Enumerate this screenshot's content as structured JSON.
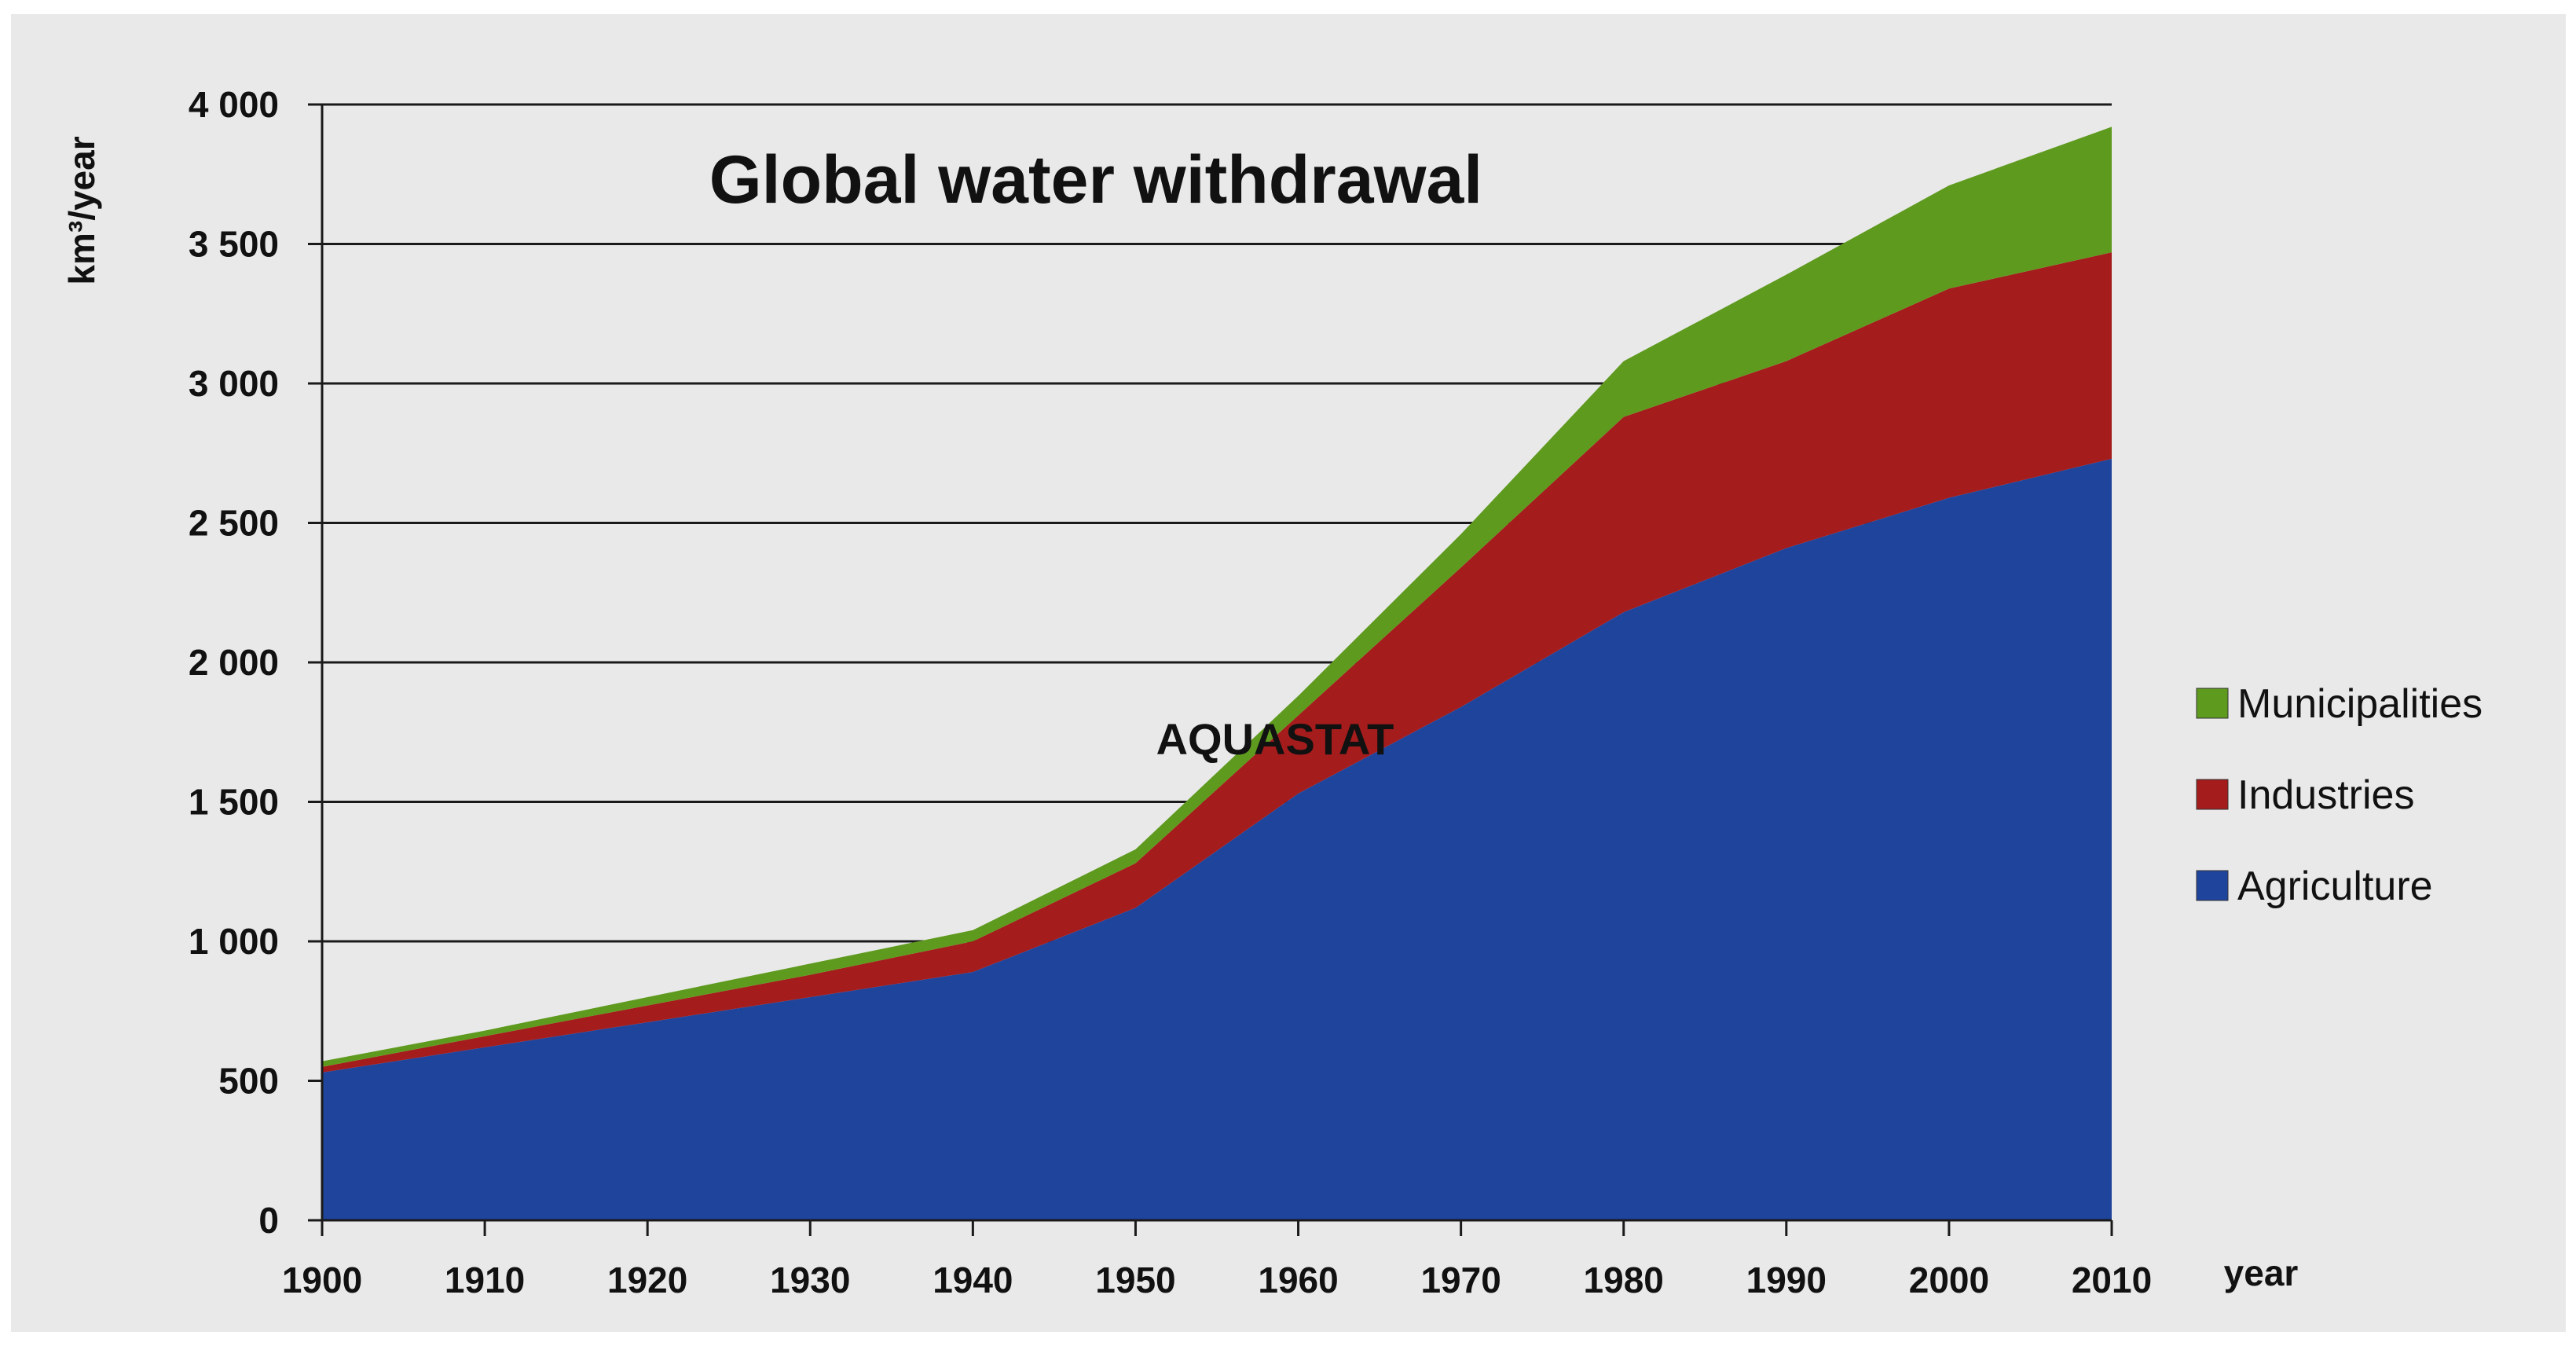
{
  "chart_data": {
    "type": "area",
    "stacked": true,
    "title": "Global water withdrawal",
    "ylabel": "km³/year",
    "xlabel": "year",
    "annotation": "AQUASTAT",
    "x": [
      1900,
      1910,
      1920,
      1930,
      1940,
      1950,
      1960,
      1970,
      1980,
      1990,
      2000,
      2010
    ],
    "xtick_labels": [
      "1900",
      "1910",
      "1920",
      "1930",
      "1940",
      "1950",
      "1960",
      "1970",
      "1980",
      "1990",
      "2000",
      "2010"
    ],
    "ylim": [
      0,
      4000
    ],
    "ytick_values": [
      0,
      500,
      1000,
      1500,
      2000,
      2500,
      3000,
      3500,
      4000
    ],
    "ytick_labels": [
      "0",
      "500",
      "1 000",
      "1 500",
      "2 000",
      "2 500",
      "3 000",
      "3 500",
      "4 000"
    ],
    "grid": true,
    "legend_position": "right",
    "series": [
      {
        "name": "Agriculture",
        "color": "#1f449c",
        "values": [
          530,
          620,
          710,
          800,
          890,
          1120,
          1530,
          1840,
          2180,
          2410,
          2590,
          2730
        ]
      },
      {
        "name": "Industries",
        "color": "#a41c1c",
        "values": [
          20,
          40,
          60,
          80,
          110,
          160,
          280,
          500,
          700,
          670,
          750,
          740
        ]
      },
      {
        "name": "Municipalities",
        "color": "#5e9a1e",
        "values": [
          20,
          20,
          30,
          40,
          40,
          50,
          70,
          120,
          200,
          310,
          370,
          450
        ]
      }
    ],
    "legend_order": [
      "Municipalities",
      "Industries",
      "Agriculture"
    ]
  }
}
